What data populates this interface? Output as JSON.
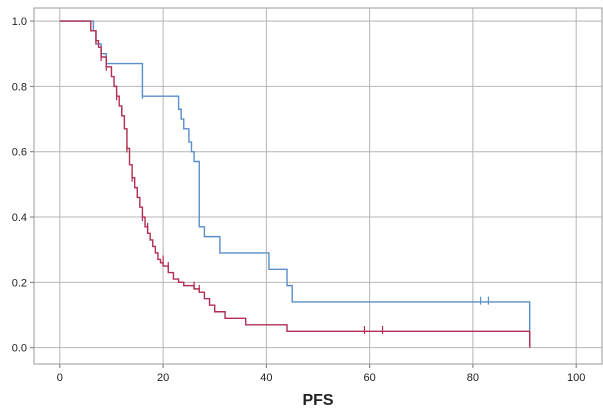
{
  "chart_data": {
    "type": "line",
    "step": true,
    "title": "",
    "xlabel": "PFS",
    "ylabel": "",
    "xlim": [
      -5,
      105
    ],
    "ylim": [
      -0.05,
      1.04
    ],
    "xticks": [
      0,
      20,
      40,
      60,
      80,
      100
    ],
    "yticks": [
      0.0,
      0.2,
      0.4,
      0.6,
      0.8,
      1.0
    ],
    "xtick_labels": [
      "0",
      "20",
      "40",
      "60",
      "80",
      "100"
    ],
    "ytick_labels": [
      "0.0",
      "0.2",
      "0.4",
      "0.6",
      "0.8",
      "1.0"
    ],
    "grid": true,
    "series": [
      {
        "color": "#5b8fc9",
        "x": [
          0,
          6.5,
          7,
          8,
          9,
          10,
          13,
          16,
          22,
          23,
          23.5,
          24,
          25,
          25.5,
          26,
          27,
          28,
          31,
          40,
          40.5,
          44,
          45,
          91
        ],
        "y": [
          1.0,
          0.97,
          0.93,
          0.9,
          0.87,
          0.87,
          0.87,
          0.77,
          0.77,
          0.73,
          0.7,
          0.67,
          0.63,
          0.6,
          0.57,
          0.37,
          0.34,
          0.29,
          0.29,
          0.24,
          0.19,
          0.14,
          0.14
        ],
        "censored_x": [
          16,
          81.5,
          83
        ],
        "censored_y": [
          0.774,
          0.144,
          0.144
        ]
      },
      {
        "color": "#b22e52",
        "x": [
          0,
          6,
          7,
          7.5,
          8,
          9,
          10,
          10.5,
          11,
          11.5,
          12,
          12.5,
          13,
          13.5,
          14,
          14.5,
          15,
          15.5,
          16,
          16.5,
          17,
          17.5,
          18,
          18.5,
          19,
          19.5,
          20,
          21,
          22,
          23,
          24,
          25,
          26,
          27,
          28,
          29,
          30,
          32,
          36,
          44,
          91
        ],
        "y": [
          1.0,
          0.97,
          0.94,
          0.92,
          0.89,
          0.86,
          0.83,
          0.8,
          0.77,
          0.74,
          0.71,
          0.67,
          0.61,
          0.56,
          0.52,
          0.49,
          0.46,
          0.43,
          0.4,
          0.37,
          0.35,
          0.33,
          0.31,
          0.29,
          0.27,
          0.26,
          0.25,
          0.23,
          0.21,
          0.2,
          0.19,
          0.19,
          0.18,
          0.17,
          0.15,
          0.13,
          0.11,
          0.09,
          0.07,
          0.05,
          0.05
        ],
        "censored_x": [
          7,
          8,
          9,
          11,
          12,
          13,
          14,
          16,
          17,
          20,
          21,
          26,
          27,
          59,
          62.5
        ],
        "censored_y": [
          0.94,
          0.89,
          0.86,
          0.77,
          0.72,
          0.61,
          0.52,
          0.4,
          0.37,
          0.27,
          0.25,
          0.19,
          0.18,
          0.054,
          0.054
        ]
      }
    ]
  }
}
